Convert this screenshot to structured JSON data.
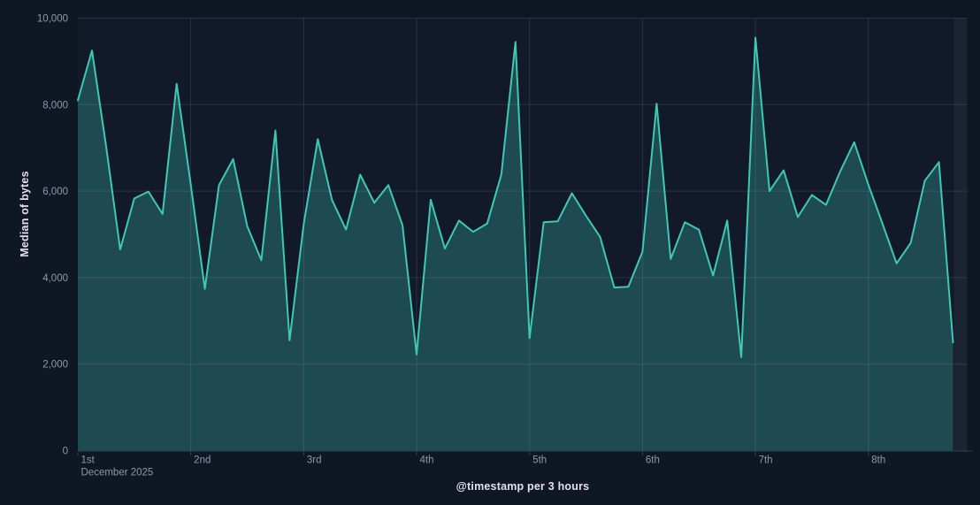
{
  "chart_data": {
    "type": "area",
    "title": "",
    "xlabel": "@timestamp per 3 hours",
    "ylabel": "Median of bytes",
    "ylim": [
      0,
      10000
    ],
    "grid": true,
    "legend": "none",
    "x_interval": "3 hours",
    "x_range": "December 1 - 8, 2025",
    "points_per_day": 8,
    "y_ticks": [
      {
        "value": 0,
        "label": "0"
      },
      {
        "value": 2000,
        "label": "2,000"
      },
      {
        "value": 4000,
        "label": "4,000"
      },
      {
        "value": 6000,
        "label": "6,000"
      },
      {
        "value": 8000,
        "label": "8,000"
      },
      {
        "value": 10000,
        "label": "10,000"
      }
    ],
    "x_ticks": [
      {
        "index": 0,
        "label": "1st",
        "sublabel": "December 2025"
      },
      {
        "index": 8,
        "label": "2nd"
      },
      {
        "index": 16,
        "label": "3rd"
      },
      {
        "index": 24,
        "label": "4th"
      },
      {
        "index": 32,
        "label": "5th"
      },
      {
        "index": 40,
        "label": "6th"
      },
      {
        "index": 48,
        "label": "7th"
      },
      {
        "index": 56,
        "label": "8th"
      }
    ],
    "values": [
      8100,
      9250,
      7050,
      4650,
      5830,
      5990,
      5470,
      8480,
      6150,
      3740,
      6140,
      6740,
      5190,
      4400,
      7400,
      2550,
      5240,
      7200,
      5800,
      5110,
      6380,
      5730,
      6140,
      5210,
      2220,
      5800,
      4670,
      5320,
      5060,
      5250,
      6380,
      9450,
      2600,
      5280,
      5300,
      5950,
      5430,
      4940,
      3770,
      3790,
      4600,
      8020,
      4430,
      5280,
      5110,
      4050,
      5320,
      2160,
      9550,
      6000,
      6480,
      5400,
      5910,
      5680,
      6450,
      7130,
      6150,
      5250,
      4330,
      4800,
      6240,
      6670,
      2500
    ]
  },
  "colors": {
    "background": "#0f1624",
    "plot_background": "#121a2a",
    "partial_bucket_band": "#1b2433",
    "grid": "rgba(165,180,210,0.16)",
    "axis_line": "#313b4f",
    "tick_mark": "#3a4458",
    "line": "#3ec9b6",
    "fill_opacity": "0.28",
    "tick_label": "#8f98ac",
    "axis_title": "#dde3ee"
  }
}
